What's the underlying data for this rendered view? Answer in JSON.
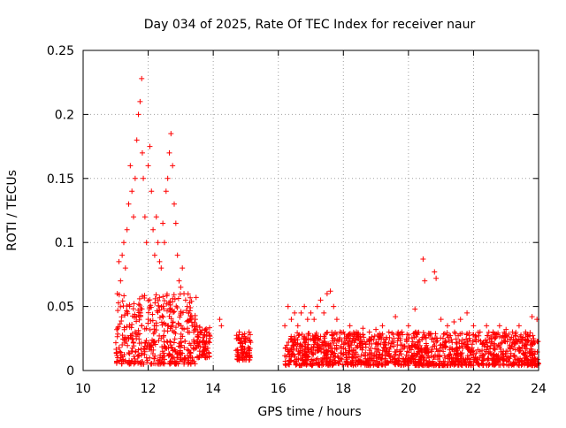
{
  "chart_data": {
    "type": "scatter",
    "title": "Day 034 of 2025, Rate Of TEC Index for receiver naur",
    "xlabel": "GPS time / hours",
    "ylabel": "ROTI / TECUs",
    "xlim": [
      10,
      24
    ],
    "ylim": [
      0,
      0.25
    ],
    "xticks": [
      10,
      12,
      14,
      16,
      18,
      20,
      22,
      24
    ],
    "yticks": [
      0,
      0.05,
      0.1,
      0.15,
      0.2,
      0.25
    ],
    "xtick_labels": [
      "10",
      "12",
      "14",
      "16",
      "18",
      "20",
      "22",
      "24"
    ],
    "ytick_labels": [
      "0",
      "0.05",
      "0.1",
      "0.15",
      "0.2",
      "0.25"
    ],
    "grid": true,
    "marker": "+",
    "color": "#ff0000",
    "series": [
      {
        "name": "ROTI",
        "x": [
          11.05,
          11.1,
          11.15,
          11.2,
          11.25,
          11.3,
          11.35,
          11.4,
          11.45,
          11.5,
          11.55,
          11.6,
          11.65,
          11.7,
          11.75,
          11.8,
          11.82,
          11.85,
          11.9,
          11.95,
          12.0,
          12.05,
          12.1,
          12.15,
          12.2,
          12.25,
          12.3,
          12.35,
          12.4,
          12.45,
          12.5,
          12.55,
          12.6,
          12.65,
          12.7,
          12.75,
          12.8,
          12.85,
          12.9,
          12.95,
          13.0,
          13.05,
          13.1,
          13.15,
          13.2,
          13.25,
          13.3,
          13.35,
          13.4,
          13.45,
          13.5,
          13.6,
          13.7,
          13.8,
          13.9,
          14.2,
          14.25,
          14.75,
          14.8,
          14.9,
          15.0,
          15.1,
          15.15,
          16.2,
          16.3,
          16.4,
          16.5,
          16.6,
          16.7,
          16.8,
          16.9,
          17.0,
          17.1,
          17.2,
          17.3,
          17.4,
          17.5,
          17.6,
          17.7,
          17.8,
          17.9,
          18.0,
          18.2,
          18.4,
          18.6,
          18.8,
          19.0,
          19.2,
          19.4,
          19.6,
          19.8,
          20.0,
          20.2,
          20.45,
          20.5,
          20.8,
          20.85,
          21.0,
          21.2,
          21.4,
          21.6,
          21.8,
          22.0,
          22.2,
          22.4,
          22.6,
          22.8,
          23.0,
          23.2,
          23.4,
          23.6,
          23.8,
          23.95,
          11.2,
          11.4,
          11.6,
          11.8,
          12.0,
          12.2,
          12.4,
          12.6,
          12.8,
          13.0,
          16.4,
          16.8,
          17.2,
          17.6,
          18.2,
          18.6,
          19.0,
          19.4,
          19.8,
          20.2,
          20.6,
          21.0,
          21.4,
          21.8,
          22.2,
          22.6,
          23.0,
          23.4,
          23.8
        ],
        "y": [
          0.06,
          0.085,
          0.07,
          0.09,
          0.1,
          0.08,
          0.11,
          0.13,
          0.16,
          0.14,
          0.12,
          0.15,
          0.18,
          0.2,
          0.21,
          0.228,
          0.17,
          0.15,
          0.12,
          0.1,
          0.16,
          0.175,
          0.14,
          0.11,
          0.09,
          0.12,
          0.1,
          0.085,
          0.08,
          0.115,
          0.1,
          0.14,
          0.15,
          0.17,
          0.185,
          0.16,
          0.13,
          0.115,
          0.09,
          0.07,
          0.065,
          0.08,
          0.06,
          0.055,
          0.05,
          0.045,
          0.04,
          0.035,
          0.03,
          0.04,
          0.035,
          0.03,
          0.028,
          0.03,
          0.025,
          0.04,
          0.035,
          0.025,
          0.03,
          0.028,
          0.025,
          0.03,
          0.022,
          0.035,
          0.05,
          0.04,
          0.045,
          0.035,
          0.045,
          0.05,
          0.04,
          0.045,
          0.04,
          0.05,
          0.055,
          0.045,
          0.06,
          0.062,
          0.05,
          0.04,
          0.03,
          0.03,
          0.035,
          0.03,
          0.033,
          0.03,
          0.032,
          0.035,
          0.03,
          0.042,
          0.03,
          0.035,
          0.048,
          0.087,
          0.07,
          0.077,
          0.072,
          0.04,
          0.035,
          0.038,
          0.04,
          0.045,
          0.035,
          0.03,
          0.035,
          0.03,
          0.035,
          0.032,
          0.03,
          0.035,
          0.03,
          0.042,
          0.04,
          0.02,
          0.025,
          0.03,
          0.035,
          0.04,
          0.03,
          0.025,
          0.035,
          0.03,
          0.025,
          0.012,
          0.015,
          0.018,
          0.02,
          0.015,
          0.018,
          0.012,
          0.015,
          0.02,
          0.018,
          0.015,
          0.02,
          0.015,
          0.018,
          0.015,
          0.012,
          0.015,
          0.018,
          0.012
        ]
      }
    ],
    "dense_bands": [
      {
        "x_start": 11.0,
        "x_end": 13.5,
        "y_low": 0.005,
        "y_high": 0.06
      },
      {
        "x_start": 13.5,
        "x_end": 13.9,
        "y_low": 0.01,
        "y_high": 0.035
      },
      {
        "x_start": 14.7,
        "x_end": 15.15,
        "y_low": 0.008,
        "y_high": 0.03
      },
      {
        "x_start": 16.2,
        "x_end": 24.0,
        "y_low": 0.004,
        "y_high": 0.03
      }
    ]
  }
}
